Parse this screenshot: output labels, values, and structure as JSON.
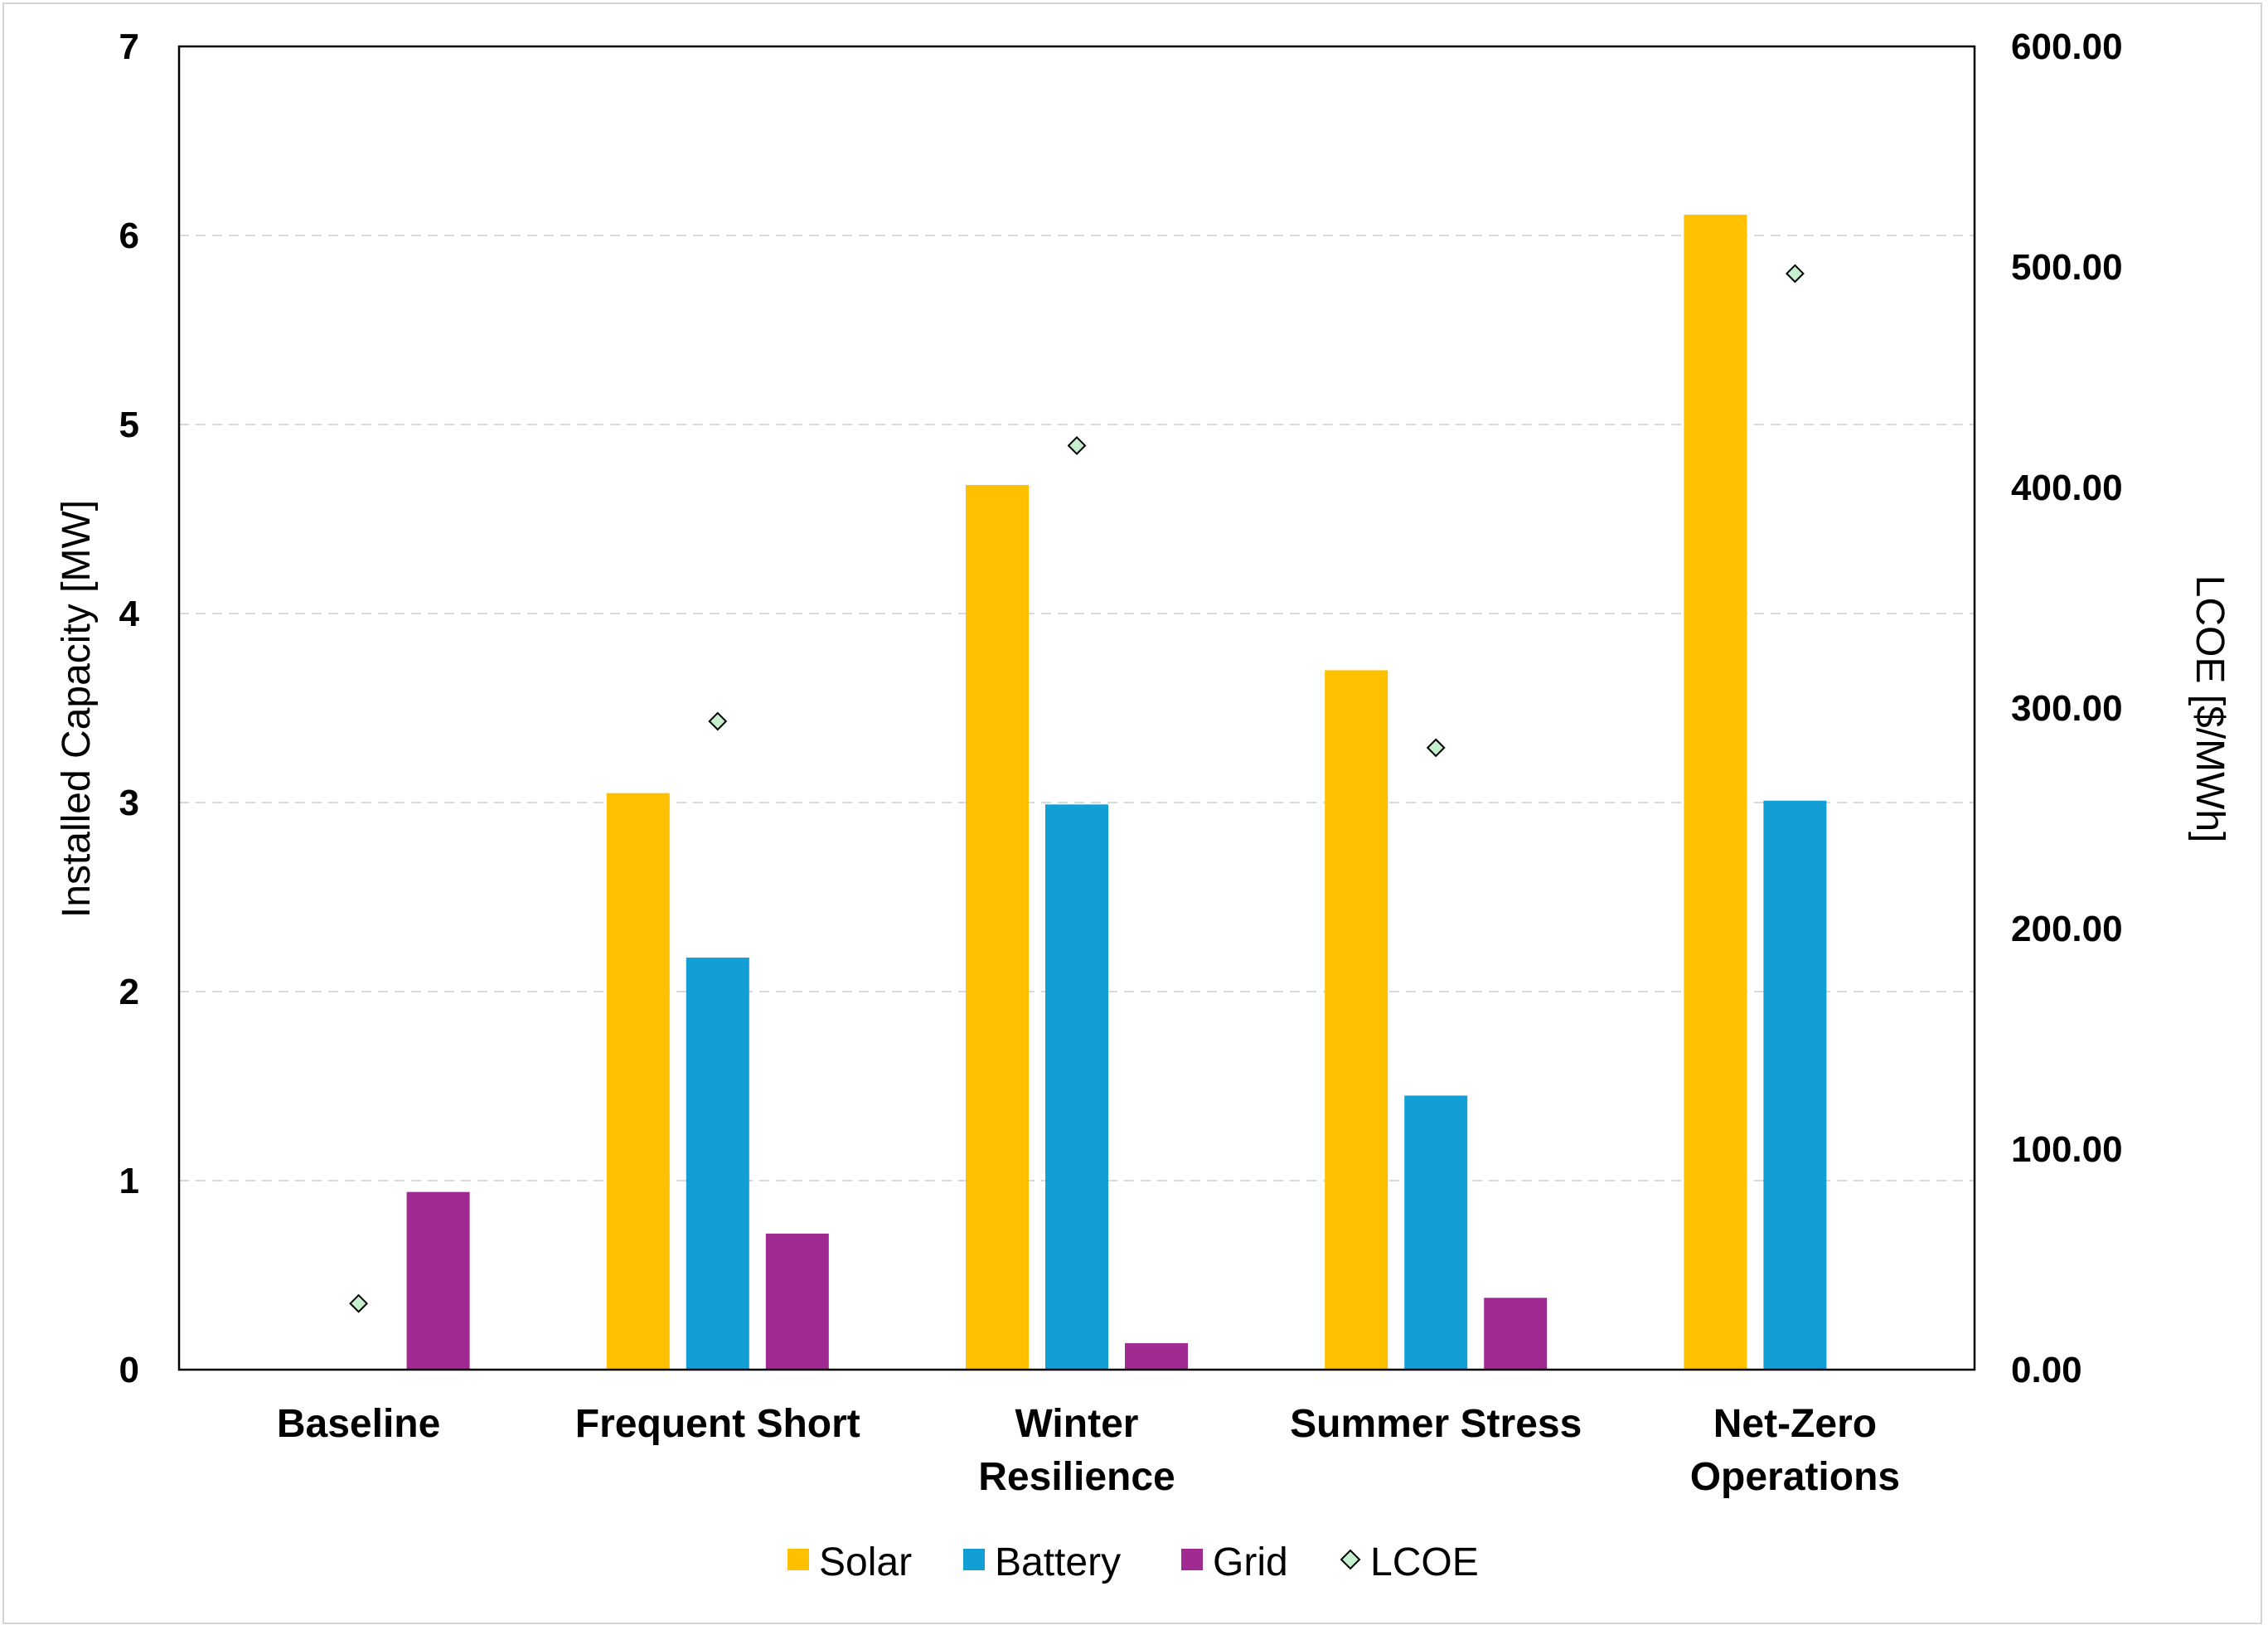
{
  "chart_data": {
    "type": "bar",
    "categories": [
      [
        "Baseline"
      ],
      [
        "Frequent Short"
      ],
      [
        "Winter",
        "Resilience"
      ],
      [
        "Summer Stress"
      ],
      [
        "Net-Zero",
        "Operations"
      ]
    ],
    "series": [
      {
        "name": "Solar",
        "color": "#FFC000",
        "values": [
          0,
          3.05,
          4.68,
          3.7,
          6.11
        ]
      },
      {
        "name": "Battery",
        "color": "#119FD6",
        "values": [
          0,
          2.18,
          2.99,
          1.45,
          3.01
        ]
      },
      {
        "name": "Grid",
        "color": "#A12A92",
        "values": [
          0.94,
          0.72,
          0.14,
          0.38,
          0
        ]
      }
    ],
    "secondary_series": {
      "name": "LCOE",
      "marker": "diamond",
      "fill": "#C6EFCE",
      "stroke": "#000000",
      "values": [
        30,
        294,
        419,
        282,
        497
      ]
    },
    "y_left": {
      "label": "Installed Capacity [MW]",
      "lim": [
        0,
        7
      ],
      "ticks": [
        "0",
        "1",
        "2",
        "3",
        "4",
        "5",
        "6",
        "7"
      ]
    },
    "y_right": {
      "label": "LCOE [$/MWh]",
      "lim": [
        0,
        600
      ],
      "ticks": [
        "0.00",
        "100.00",
        "200.00",
        "300.00",
        "400.00",
        "500.00",
        "600.00"
      ]
    },
    "grid": "horizontal dashed",
    "legend_position": "bottom-center"
  }
}
